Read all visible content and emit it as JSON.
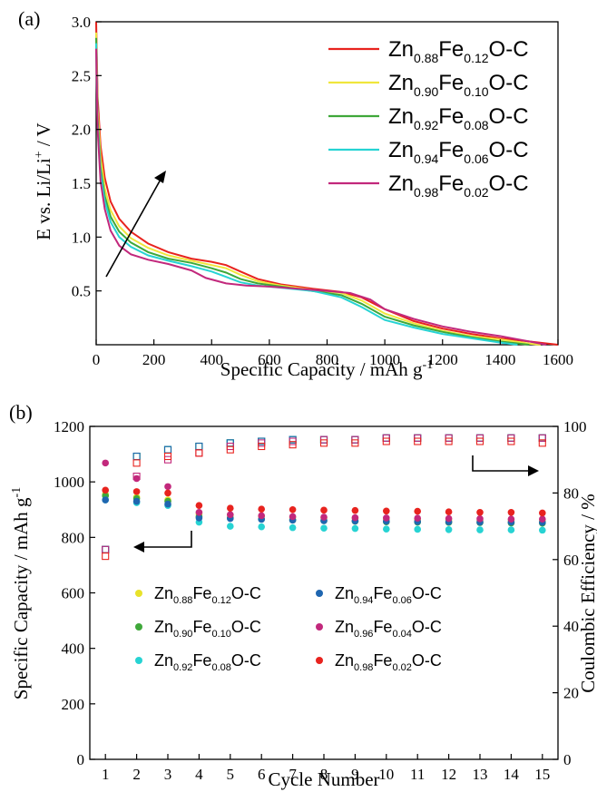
{
  "chart_data": [
    {
      "type": "line",
      "panel_label": "(a)",
      "xlabel": "Specific Capacity / mAh g",
      "xlabel_sup": "-1",
      "ylabel": "E vs. Li/Li",
      "ylabel_sup": "+",
      "ylabel_tail": " / V",
      "xlim": [
        0,
        1600
      ],
      "ylim": [
        0,
        3.0
      ],
      "xticks": [
        "0",
        "200",
        "400",
        "600",
        "800",
        "1000",
        "1200",
        "1400",
        "1600"
      ],
      "yticks": [
        "0.5",
        "1.0",
        "1.5",
        "2.0",
        "2.5",
        "3.0"
      ],
      "legend_position": "top-right",
      "series": [
        {
          "name": "Zn0.88Fe0.12O-C",
          "label": [
            "Zn",
            "0.88",
            "Fe",
            "0.12",
            "O-C"
          ],
          "color": "#e8231e",
          "points": [
            [
              0,
              3.0
            ],
            [
              5,
              2.3
            ],
            [
              15,
              1.85
            ],
            [
              30,
              1.55
            ],
            [
              50,
              1.33
            ],
            [
              80,
              1.17
            ],
            [
              120,
              1.05
            ],
            [
              180,
              0.94
            ],
            [
              250,
              0.86
            ],
            [
              330,
              0.8
            ],
            [
              400,
              0.77
            ],
            [
              450,
              0.74
            ],
            [
              500,
              0.68
            ],
            [
              560,
              0.61
            ],
            [
              640,
              0.56
            ],
            [
              750,
              0.52
            ],
            [
              850,
              0.49
            ],
            [
              920,
              0.44
            ],
            [
              1000,
              0.33
            ],
            [
              1100,
              0.22
            ],
            [
              1200,
              0.15
            ],
            [
              1300,
              0.1
            ],
            [
              1400,
              0.06
            ],
            [
              1500,
              0.03
            ],
            [
              1600,
              0.0
            ]
          ]
        },
        {
          "name": "Zn0.90Fe0.10O-C",
          "label": [
            "Zn",
            "0.90",
            "Fe",
            "0.10",
            "O-C"
          ],
          "color": "#f0e63c",
          "points": [
            [
              0,
              2.9
            ],
            [
              5,
              2.2
            ],
            [
              15,
              1.75
            ],
            [
              30,
              1.45
            ],
            [
              50,
              1.25
            ],
            [
              80,
              1.1
            ],
            [
              120,
              0.99
            ],
            [
              180,
              0.9
            ],
            [
              250,
              0.83
            ],
            [
              330,
              0.78
            ],
            [
              400,
              0.74
            ],
            [
              450,
              0.71
            ],
            [
              500,
              0.65
            ],
            [
              560,
              0.59
            ],
            [
              640,
              0.55
            ],
            [
              750,
              0.51
            ],
            [
              850,
              0.48
            ],
            [
              920,
              0.41
            ],
            [
              1000,
              0.29
            ],
            [
              1100,
              0.2
            ],
            [
              1200,
              0.13
            ],
            [
              1300,
              0.08
            ],
            [
              1400,
              0.05
            ],
            [
              1500,
              0.01
            ],
            [
              1540,
              0.0
            ]
          ]
        },
        {
          "name": "Zn0.92Fe0.08O-C",
          "label": [
            "Zn",
            "0.92",
            "Fe",
            "0.08",
            "O-C"
          ],
          "color": "#3fa83a",
          "points": [
            [
              0,
              2.85
            ],
            [
              5,
              2.1
            ],
            [
              15,
              1.65
            ],
            [
              30,
              1.38
            ],
            [
              50,
              1.19
            ],
            [
              80,
              1.05
            ],
            [
              120,
              0.95
            ],
            [
              180,
              0.86
            ],
            [
              250,
              0.8
            ],
            [
              330,
              0.76
            ],
            [
              400,
              0.71
            ],
            [
              450,
              0.67
            ],
            [
              500,
              0.61
            ],
            [
              560,
              0.57
            ],
            [
              640,
              0.54
            ],
            [
              750,
              0.5
            ],
            [
              850,
              0.46
            ],
            [
              920,
              0.38
            ],
            [
              1000,
              0.26
            ],
            [
              1100,
              0.18
            ],
            [
              1200,
              0.12
            ],
            [
              1300,
              0.07
            ],
            [
              1400,
              0.03
            ],
            [
              1500,
              0.0
            ]
          ]
        },
        {
          "name": "Zn0.94Fe0.06O-C",
          "label": [
            "Zn",
            "0.94",
            "Fe",
            "0.06",
            "O-C"
          ],
          "color": "#27d3d3",
          "points": [
            [
              0,
              2.8
            ],
            [
              5,
              2.05
            ],
            [
              15,
              1.6
            ],
            [
              30,
              1.33
            ],
            [
              50,
              1.14
            ],
            [
              80,
              1.0
            ],
            [
              120,
              0.91
            ],
            [
              180,
              0.83
            ],
            [
              250,
              0.78
            ],
            [
              330,
              0.73
            ],
            [
              400,
              0.68
            ],
            [
              450,
              0.63
            ],
            [
              500,
              0.58
            ],
            [
              560,
              0.55
            ],
            [
              640,
              0.53
            ],
            [
              750,
              0.5
            ],
            [
              850,
              0.44
            ],
            [
              920,
              0.35
            ],
            [
              1000,
              0.23
            ],
            [
              1100,
              0.16
            ],
            [
              1200,
              0.1
            ],
            [
              1300,
              0.06
            ],
            [
              1400,
              0.02
            ],
            [
              1460,
              0.0
            ]
          ]
        },
        {
          "name": "Zn0.98Fe0.02O-C",
          "label": [
            "Zn",
            "0.98",
            "Fe",
            "0.02",
            "O-C"
          ],
          "color": "#c2287c",
          "points": [
            [
              0,
              2.75
            ],
            [
              5,
              2.0
            ],
            [
              15,
              1.52
            ],
            [
              30,
              1.26
            ],
            [
              50,
              1.06
            ],
            [
              80,
              0.92
            ],
            [
              120,
              0.84
            ],
            [
              180,
              0.79
            ],
            [
              250,
              0.75
            ],
            [
              330,
              0.69
            ],
            [
              380,
              0.62
            ],
            [
              450,
              0.57
            ],
            [
              520,
              0.55
            ],
            [
              600,
              0.54
            ],
            [
              700,
              0.52
            ],
            [
              800,
              0.5
            ],
            [
              880,
              0.48
            ],
            [
              950,
              0.42
            ],
            [
              1000,
              0.33
            ],
            [
              1100,
              0.24
            ],
            [
              1200,
              0.17
            ],
            [
              1300,
              0.12
            ],
            [
              1400,
              0.08
            ],
            [
              1500,
              0.03
            ],
            [
              1560,
              0.0
            ]
          ]
        }
      ]
    },
    {
      "type": "scatter",
      "panel_label": "(b)",
      "xlabel": "Cycle Number",
      "ylabel": "Specific Capacity / mAh g",
      "ylabel_sup": "-1",
      "y2label": "Coulombic Efficiency / %",
      "x": [
        1,
        2,
        3,
        4,
        5,
        6,
        7,
        8,
        9,
        10,
        11,
        12,
        13,
        14,
        15
      ],
      "xlim": [
        0.5,
        15.5
      ],
      "ylim": [
        0,
        1200
      ],
      "y2lim": [
        0,
        100
      ],
      "xticks": [
        "1",
        "2",
        "3",
        "4",
        "5",
        "6",
        "7",
        "8",
        "9",
        "10",
        "11",
        "12",
        "13",
        "14",
        "15"
      ],
      "yticks": [
        "0",
        "200",
        "400",
        "600",
        "800",
        "1000",
        "1200"
      ],
      "y2ticks": [
        "0",
        "20",
        "40",
        "60",
        "80",
        "100"
      ],
      "legend_position": "bottom-center",
      "series": [
        {
          "name": "Zn0.88Fe0.12O-C",
          "label": [
            "Zn",
            "0.88",
            "Fe",
            "0.12",
            "O-C"
          ],
          "color": "#e8e22a",
          "capacity": [
            955,
            945,
            935,
            885,
            880,
            876,
            872,
            870,
            868,
            866,
            864,
            862,
            860,
            860,
            858
          ],
          "efficiency": [
            63,
            91,
            93,
            94,
            95,
            95.5,
            96,
            96,
            96,
            96.5,
            96.5,
            96.5,
            96.5,
            96.5,
            96.5
          ]
        },
        {
          "name": "Zn0.90Fe0.10O-C",
          "label": [
            "Zn",
            "0.90",
            "Fe",
            "0.10",
            "O-C"
          ],
          "color": "#3fa83a",
          "capacity": [
            950,
            940,
            930,
            875,
            870,
            866,
            862,
            860,
            858,
            856,
            855,
            854,
            853,
            852,
            851
          ],
          "efficiency": [
            63,
            91,
            93,
            94,
            95,
            95.5,
            96,
            96,
            96,
            96.5,
            96.5,
            96.5,
            96.5,
            96.5,
            96.5
          ]
        },
        {
          "name": "Zn0.92Fe0.08O-C",
          "label": [
            "Zn",
            "0.92",
            "Fe",
            "0.08",
            "O-C"
          ],
          "color": "#27d3d3",
          "capacity": [
            935,
            925,
            915,
            855,
            840,
            838,
            835,
            833,
            832,
            830,
            829,
            828,
            827,
            827,
            826
          ],
          "efficiency": [
            63,
            91,
            93,
            94,
            95,
            95.5,
            96,
            96,
            96,
            96.5,
            96.5,
            96.5,
            96.5,
            96.5,
            96.5
          ]
        },
        {
          "name": "Zn0.94Fe0.06O-C",
          "label": [
            "Zn",
            "0.94",
            "Fe",
            "0.06",
            "O-C"
          ],
          "color": "#1f66b0",
          "capacity": [
            935,
            930,
            920,
            870,
            868,
            865,
            862,
            860,
            859,
            858,
            857,
            856,
            855,
            855,
            854
          ],
          "efficiency": [
            63,
            91,
            93,
            94,
            95,
            95.5,
            96,
            96,
            96,
            96.5,
            96.5,
            96.5,
            96.5,
            96.5,
            96.5
          ]
        },
        {
          "name": "Zn0.96Fe0.04O-C",
          "label": [
            "Zn",
            "0.96",
            "Fe",
            "0.04",
            "O-C"
          ],
          "color": "#c2287c",
          "capacity": [
            1068,
            1012,
            983,
            890,
            882,
            878,
            875,
            873,
            871,
            870,
            869,
            868,
            867,
            866,
            866
          ],
          "efficiency": [
            63,
            85,
            90,
            92,
            94,
            95,
            95.5,
            96,
            96,
            96.5,
            96.5,
            96.5,
            96.5,
            96.5,
            96.5
          ]
        },
        {
          "name": "Zn0.98Fe0.02O-C",
          "label": [
            "Zn",
            "0.98",
            "Fe",
            "0.02",
            "O-C"
          ],
          "color": "#e8231e",
          "capacity": [
            970,
            965,
            960,
            915,
            905,
            902,
            900,
            898,
            897,
            895,
            894,
            892,
            890,
            890,
            888
          ],
          "efficiency": [
            61,
            89,
            91,
            92,
            93,
            94,
            94.5,
            95,
            95,
            95.5,
            95.5,
            95.5,
            95.5,
            95.5,
            95
          ]
        }
      ]
    }
  ]
}
